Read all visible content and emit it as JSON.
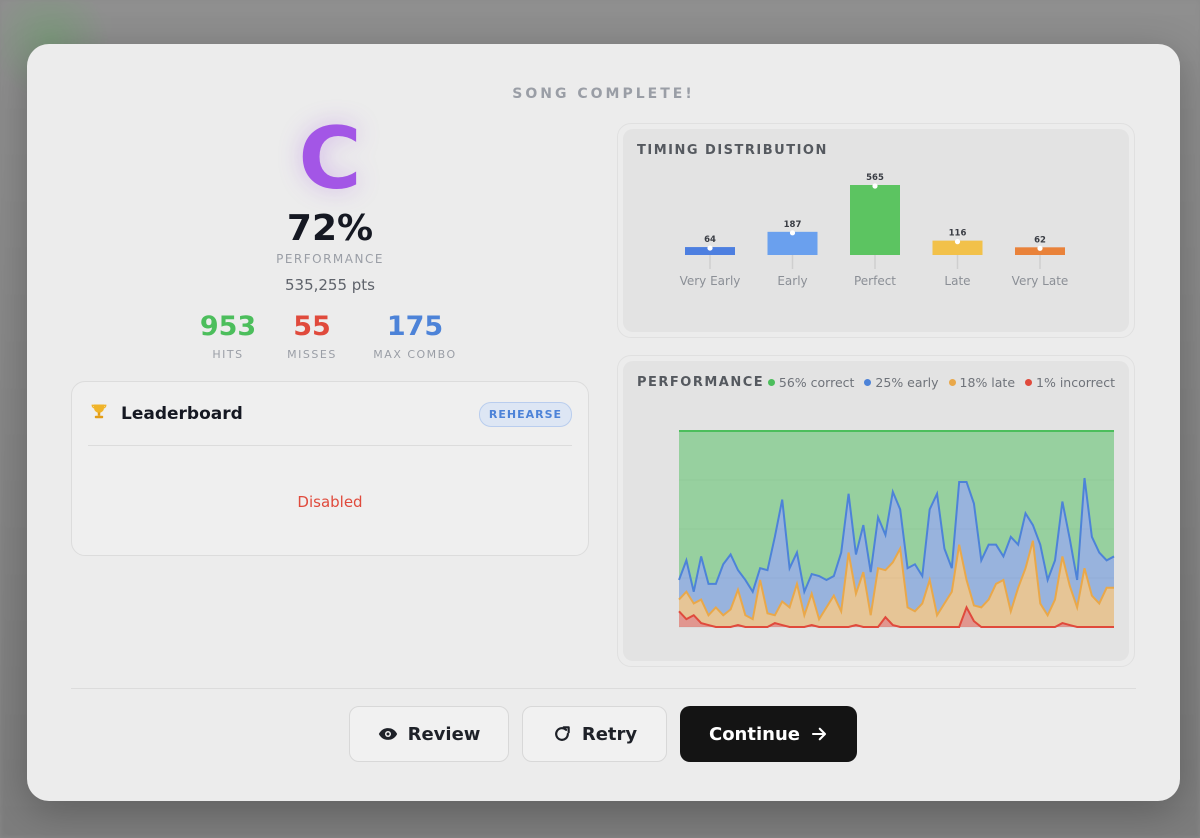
{
  "header": {
    "title": "SONG COMPLETE!"
  },
  "result": {
    "grade": "C",
    "percent": "72%",
    "percent_label": "PERFORMANCE",
    "points": "535,255 pts",
    "grade_color": "#a356e6"
  },
  "stats": [
    {
      "value": "953",
      "label": "HITS",
      "color": "#4cbe5c"
    },
    {
      "value": "55",
      "label": "MISSES",
      "color": "#e04a3c"
    },
    {
      "value": "175",
      "label": "MAX COMBO",
      "color": "#4d83d8"
    }
  ],
  "leaderboard": {
    "icon": "trophy-icon",
    "title": "Leaderboard",
    "badge": "REHEARSE",
    "status": "Disabled"
  },
  "timing_panel": {
    "title": "TIMING DISTRIBUTION"
  },
  "performance_panel": {
    "title": "PERFORMANCE",
    "legend": [
      {
        "label": "56% correct",
        "color": "#4cbe5c"
      },
      {
        "label": "25% early",
        "color": "#4d83d8"
      },
      {
        "label": "18% late",
        "color": "#e9a84a"
      },
      {
        "label": "1% incorrect",
        "color": "#e04a3c"
      }
    ]
  },
  "chart_data": [
    {
      "type": "bar",
      "title": "TIMING DISTRIBUTION",
      "categories": [
        "Very Early",
        "Early",
        "Perfect",
        "Late",
        "Very Late"
      ],
      "values": [
        64,
        187,
        565,
        116,
        62
      ],
      "colors": [
        "#4d7fe0",
        "#6aa0ee",
        "#5cc461",
        "#f2c14a",
        "#e9823a"
      ],
      "ylim": [
        0,
        565
      ],
      "grid": false,
      "legend": "none"
    },
    {
      "type": "area",
      "title": "PERFORMANCE",
      "stacked": true,
      "ylim": [
        0,
        100
      ],
      "grid": true,
      "legend": "top-right",
      "x": [
        0,
        1,
        2,
        3,
        4,
        5,
        6,
        7,
        8,
        9,
        10,
        11,
        12,
        13,
        14,
        15,
        16,
        17,
        18,
        19,
        20,
        21,
        22,
        23,
        24,
        25,
        26,
        27,
        28,
        29,
        30,
        31,
        32,
        33,
        34,
        35,
        36,
        37,
        38,
        39,
        40,
        41,
        42,
        43,
        44,
        45,
        46,
        47,
        48,
        49,
        50,
        51,
        52,
        53,
        54,
        55,
        56,
        57,
        58,
        59
      ],
      "series": [
        {
          "name": "incorrect",
          "color": "#e04a3c",
          "values": [
            8,
            4,
            6,
            2,
            1,
            0,
            0,
            0,
            1,
            0,
            0,
            0,
            0,
            2,
            1,
            0,
            0,
            0,
            1,
            0,
            0,
            0,
            0,
            0,
            1,
            0,
            0,
            0,
            5,
            1,
            0,
            0,
            0,
            0,
            0,
            0,
            0,
            0,
            0,
            10,
            3,
            0,
            0,
            0,
            0,
            0,
            0,
            0,
            0,
            0,
            0,
            0,
            2,
            1,
            0,
            0,
            0,
            0,
            0,
            0
          ]
        },
        {
          "name": "late",
          "color": "#e9a84a",
          "values": [
            6,
            14,
            6,
            12,
            5,
            10,
            6,
            9,
            18,
            6,
            4,
            24,
            7,
            4,
            12,
            10,
            22,
            6,
            16,
            4,
            10,
            16,
            8,
            38,
            16,
            28,
            6,
            30,
            24,
            32,
            40,
            10,
            8,
            12,
            24,
            6,
            12,
            18,
            42,
            14,
            8,
            10,
            14,
            22,
            24,
            8,
            20,
            30,
            44,
            12,
            6,
            14,
            34,
            20,
            10,
            30,
            16,
            12,
            20,
            20
          ]
        },
        {
          "name": "early",
          "color": "#4d83d8",
          "values": [
            10,
            16,
            6,
            22,
            16,
            12,
            26,
            28,
            10,
            18,
            14,
            6,
            22,
            40,
            52,
            20,
            16,
            12,
            10,
            22,
            14,
            10,
            30,
            30,
            20,
            24,
            22,
            26,
            18,
            36,
            20,
            20,
            24,
            14,
            36,
            62,
            28,
            12,
            32,
            50,
            52,
            24,
            28,
            20,
            12,
            38,
            22,
            28,
            8,
            30,
            18,
            20,
            28,
            24,
            14,
            46,
            30,
            26,
            14,
            16
          ]
        },
        {
          "name": "correct",
          "color": "#4cbe5c",
          "values": [
            76,
            66,
            82,
            64,
            78,
            78,
            68,
            63,
            71,
            76,
            82,
            70,
            71,
            54,
            35,
            70,
            62,
            82,
            73,
            74,
            76,
            74,
            62,
            32,
            63,
            48,
            72,
            44,
            53,
            31,
            40,
            70,
            68,
            74,
            40,
            32,
            60,
            70,
            26,
            26,
            37,
            66,
            58,
            58,
            64,
            54,
            58,
            42,
            48,
            58,
            76,
            66,
            36,
            55,
            76,
            24,
            54,
            62,
            66,
            64
          ]
        }
      ]
    }
  ]
}
